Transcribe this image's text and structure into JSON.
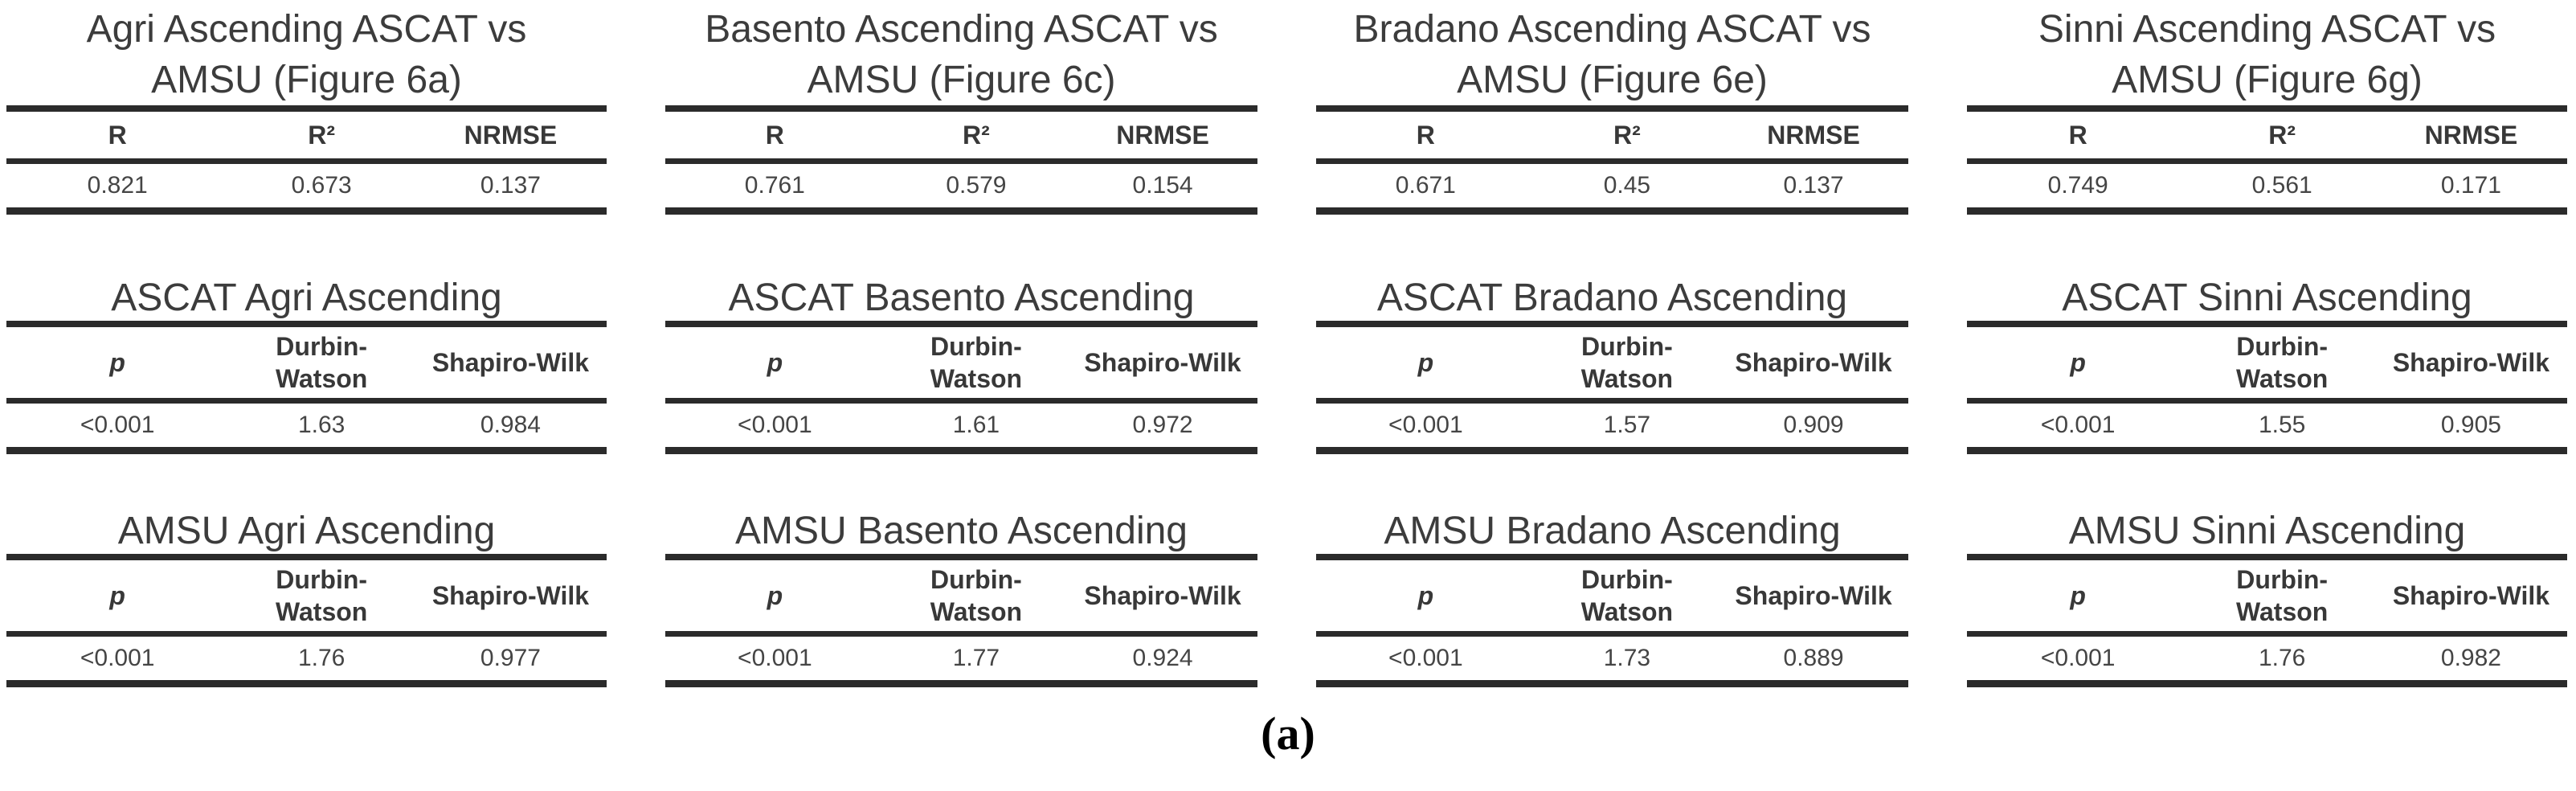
{
  "caption": "(a)",
  "colors": {
    "text": "#3c3c3c",
    "rule": "#2b2b2b",
    "data_text": "#454545",
    "caption": "#000000",
    "background": "#ffffff"
  },
  "columns": [
    {
      "correlation": {
        "title_line1": "Agri Ascending ASCAT vs",
        "title_line2": "AMSU (Figure 6a)",
        "headers": [
          "R",
          "R²",
          "NRMSE"
        ],
        "values": [
          "0.821",
          "0.673",
          "0.137"
        ]
      },
      "ascat": {
        "title": "ASCAT Agri Ascending",
        "headers": [
          "p",
          "Durbin-\nWatson",
          "Shapiro-Wilk"
        ],
        "values": [
          "<0.001",
          "1.63",
          "0.984"
        ]
      },
      "amsu": {
        "title": "AMSU Agri Ascending",
        "headers": [
          "p",
          "Durbin-\nWatson",
          "Shapiro-Wilk"
        ],
        "values": [
          "<0.001",
          "1.76",
          "0.977"
        ]
      }
    },
    {
      "correlation": {
        "title_line1": "Basento Ascending ASCAT vs",
        "title_line2": "AMSU (Figure 6c)",
        "headers": [
          "R",
          "R²",
          "NRMSE"
        ],
        "values": [
          "0.761",
          "0.579",
          "0.154"
        ]
      },
      "ascat": {
        "title": "ASCAT Basento Ascending",
        "headers": [
          "p",
          "Durbin-\nWatson",
          "Shapiro-Wilk"
        ],
        "values": [
          "<0.001",
          "1.61",
          "0.972"
        ]
      },
      "amsu": {
        "title": "AMSU Basento Ascending",
        "headers": [
          "p",
          "Durbin-\nWatson",
          "Shapiro-Wilk"
        ],
        "values": [
          "<0.001",
          "1.77",
          "0.924"
        ]
      }
    },
    {
      "correlation": {
        "title_line1": "Bradano Ascending ASCAT vs",
        "title_line2": "AMSU (Figure 6e)",
        "headers": [
          "R",
          "R²",
          "NRMSE"
        ],
        "values": [
          "0.671",
          "0.45",
          "0.137"
        ]
      },
      "ascat": {
        "title": "ASCAT Bradano Ascending",
        "headers": [
          "p",
          "Durbin-\nWatson",
          "Shapiro-Wilk"
        ],
        "values": [
          "<0.001",
          "1.57",
          "0.909"
        ]
      },
      "amsu": {
        "title": "AMSU Bradano Ascending",
        "headers": [
          "p",
          "Durbin-\nWatson",
          "Shapiro-Wilk"
        ],
        "values": [
          "<0.001",
          "1.73",
          "0.889"
        ]
      }
    },
    {
      "correlation": {
        "title_line1": "Sinni Ascending ASCAT vs",
        "title_line2": "AMSU (Figure 6g)",
        "headers": [
          "R",
          "R²",
          "NRMSE"
        ],
        "values": [
          "0.749",
          "0.561",
          "0.171"
        ]
      },
      "ascat": {
        "title": "ASCAT Sinni Ascending",
        "headers": [
          "p",
          "Durbin-\nWatson",
          "Shapiro-Wilk"
        ],
        "values": [
          "<0.001",
          "1.55",
          "0.905"
        ]
      },
      "amsu": {
        "title": "AMSU Sinni Ascending",
        "headers": [
          "p",
          "Durbin-\nWatson",
          "Shapiro-Wilk"
        ],
        "values": [
          "<0.001",
          "1.76",
          "0.982"
        ]
      }
    }
  ]
}
